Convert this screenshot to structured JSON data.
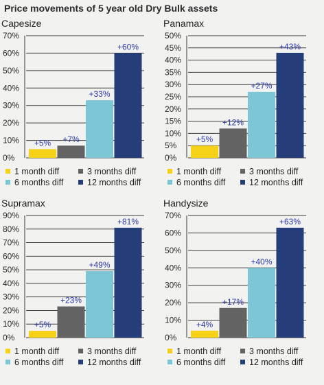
{
  "page_title": "Price movements of 5 year old Dry Bulk assets",
  "legend": [
    {
      "label": "1 month diff",
      "color": "#f5d117"
    },
    {
      "label": "3 months diff",
      "color": "#636363"
    },
    {
      "label": "6 months diff",
      "color": "#7cc6d6"
    },
    {
      "label": "12 months diff",
      "color": "#253d78"
    }
  ],
  "chart_data": [
    {
      "type": "bar",
      "title": "Capesize",
      "categories": [
        "1 month diff",
        "3 months diff",
        "6 months diff",
        "12 months diff"
      ],
      "values": [
        5,
        7,
        33,
        60
      ],
      "data_labels": [
        "+5%",
        "+7%",
        "+33%",
        "+60%"
      ],
      "ylim": [
        0,
        70
      ],
      "yticks": [
        0,
        10,
        20,
        30,
        40,
        50,
        60,
        70
      ],
      "ytick_labels": [
        "0%",
        "10%",
        "20%",
        "30%",
        "40%",
        "50%",
        "60%",
        "70%"
      ],
      "grid": true
    },
    {
      "type": "bar",
      "title": "Panamax",
      "categories": [
        "1 month diff",
        "3 months diff",
        "6 months diff",
        "12 months diff"
      ],
      "values": [
        5,
        12,
        27,
        43
      ],
      "data_labels": [
        "+5%",
        "+12%",
        "+27%",
        "+43%"
      ],
      "ylim": [
        0,
        50
      ],
      "yticks": [
        0,
        5,
        10,
        15,
        20,
        25,
        30,
        35,
        40,
        45,
        50
      ],
      "ytick_labels": [
        "0%",
        "5%",
        "10%",
        "15%",
        "20%",
        "25%",
        "30%",
        "35%",
        "40%",
        "45%",
        "50%"
      ],
      "grid": true
    },
    {
      "type": "bar",
      "title": "Supramax",
      "categories": [
        "1 month diff",
        "3 months diff",
        "6 months diff",
        "12 months diff"
      ],
      "values": [
        5,
        23,
        49,
        81
      ],
      "data_labels": [
        "+5%",
        "+23%",
        "+49%",
        "+81%"
      ],
      "ylim": [
        0,
        90
      ],
      "yticks": [
        0,
        10,
        20,
        30,
        40,
        50,
        60,
        70,
        80,
        90
      ],
      "ytick_labels": [
        "0%",
        "10%",
        "20%",
        "30%",
        "40%",
        "50%",
        "60%",
        "70%",
        "80%",
        "90%"
      ],
      "grid": true
    },
    {
      "type": "bar",
      "title": "Handysize",
      "categories": [
        "1 month diff",
        "3 months diff",
        "6 months diff",
        "12 months diff"
      ],
      "values": [
        4,
        17,
        40,
        63
      ],
      "data_labels": [
        "+4%",
        "+17%",
        "+40%",
        "+63%"
      ],
      "ylim": [
        0,
        70
      ],
      "yticks": [
        0,
        10,
        20,
        30,
        40,
        50,
        60,
        70
      ],
      "ytick_labels": [
        "0%",
        "10%",
        "20%",
        "30%",
        "40%",
        "50%",
        "60%",
        "70%"
      ],
      "grid": true
    }
  ]
}
